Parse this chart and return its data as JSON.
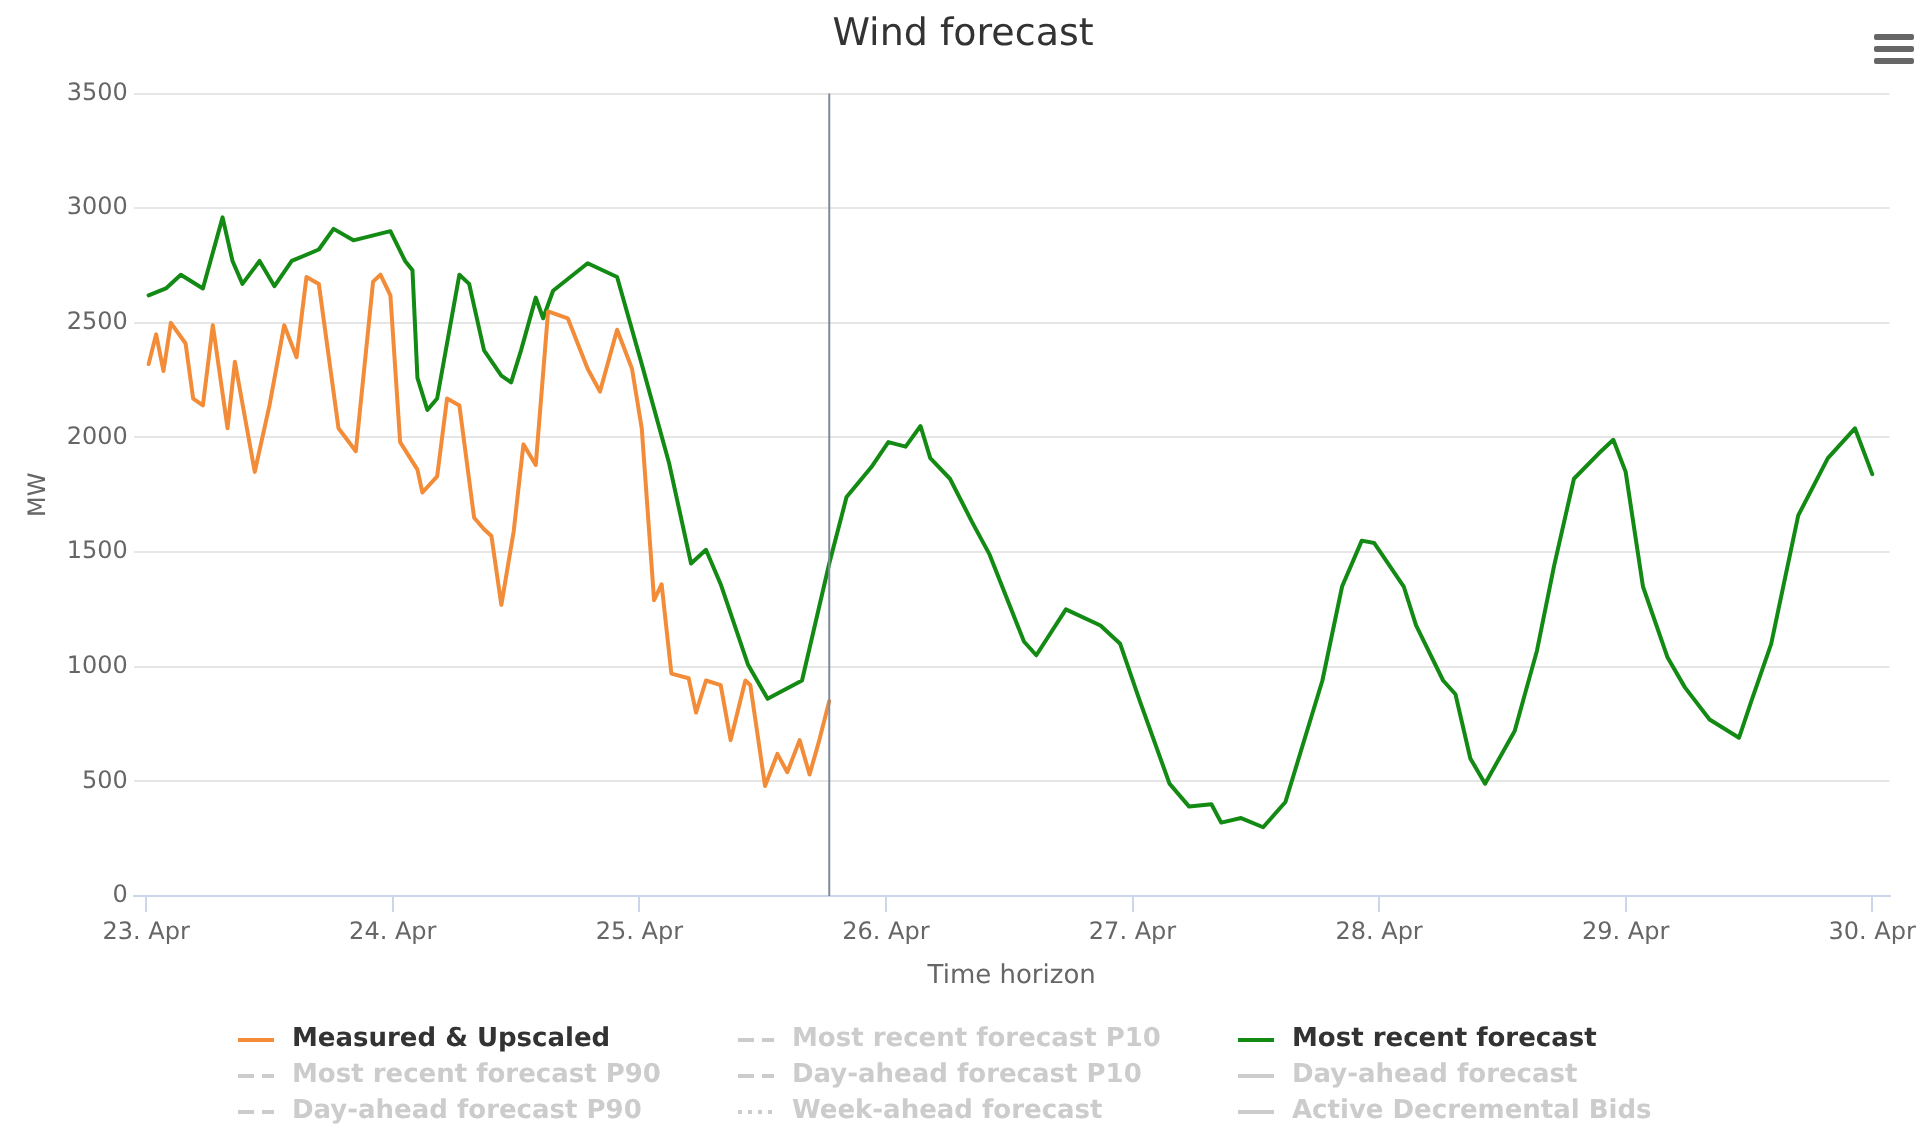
{
  "chart_data": {
    "type": "line",
    "title": "Wind forecast",
    "xlabel": "Time horizon",
    "ylabel": "MW",
    "xlim": [
      "--04-22T22:48",
      "--04-30T01:41"
    ],
    "xticks": [
      {
        "value": "--04-23",
        "label": "23. Apr"
      },
      {
        "value": "--04-24",
        "label": "24. Apr"
      },
      {
        "value": "--04-25",
        "label": "25. Apr"
      },
      {
        "value": "--04-26",
        "label": "26. Apr"
      },
      {
        "value": "--04-27",
        "label": "27. Apr"
      },
      {
        "value": "--04-28",
        "label": "28. Apr"
      },
      {
        "value": "--04-29",
        "label": "29. Apr"
      },
      {
        "value": "--04-30",
        "label": "30. Apr"
      }
    ],
    "ylim": [
      0,
      3500
    ],
    "yticks": [
      0,
      500,
      1000,
      1500,
      2000,
      2500,
      3000,
      3500
    ],
    "grid": "y",
    "legend": "bottom",
    "marker": "none",
    "ref_lines": [
      {
        "axis": "x",
        "value": "--04-25T18:29",
        "color": "#7f8a9a"
      }
    ],
    "series": [
      {
        "name": "Measured & Upscaled",
        "color": "#f28c38",
        "line_style": "solid",
        "x": [
          "--04-23T00:14",
          "--04-23T00:58",
          "--04-23T01:41",
          "--04-23T02:24",
          "--04-23T03:50",
          "--04-23T04:34",
          "--04-23T05:31",
          "--04-23T06:29",
          "--04-23T07:55",
          "--04-23T08:38",
          "--04-23T10:34",
          "--04-23T12:00",
          "--04-23T13:26",
          "--04-23T14:38",
          "--04-23T15:36",
          "--04-23T16:48",
          "--04-23T18:43",
          "--04-23T20:24",
          "--04-23T22:05",
          "--04-23T22:48",
          "--04-23T23:46",
          "--04-24T00:43",
          "--04-24T02:24",
          "--04-24T02:53",
          "--04-24T04:19",
          "--04-24T05:17",
          "--04-24T06:29",
          "--04-24T07:55",
          "--04-24T08:53",
          "--04-24T09:36",
          "--04-24T10:34",
          "--04-24T11:46",
          "--04-24T12:43",
          "--04-24T13:55",
          "--04-24T15:07",
          "--04-24T17:02",
          "--04-24T18:58",
          "--04-24T20:10",
          "--04-24T21:50",
          "--04-24T23:17",
          "--04-25T00:14",
          "--04-25T01:26",
          "--04-25T02:10",
          "--04-25T03:07",
          "--04-25T04:48",
          "--04-25T05:31",
          "--04-25T06:29",
          "--04-25T07:55",
          "--04-25T08:53",
          "--04-25T10:19",
          "--04-25T10:48",
          "--04-25T12:14",
          "--04-25T13:26",
          "--04-25T14:24",
          "--04-25T15:36",
          "--04-25T16:34",
          "--04-25T17:31",
          "--04-25T18:29"
        ],
        "values": [
          2320,
          2450,
          2290,
          2500,
          2410,
          2170,
          2140,
          2490,
          2040,
          2330,
          1850,
          2140,
          2490,
          2350,
          2700,
          2670,
          2040,
          1940,
          2680,
          2710,
          2620,
          1980,
          1860,
          1760,
          1830,
          2170,
          2140,
          1650,
          1600,
          1570,
          1270,
          1590,
          1970,
          1880,
          2550,
          2520,
          2300,
          2200,
          2470,
          2300,
          2040,
          1290,
          1360,
          970,
          950,
          800,
          940,
          920,
          680,
          940,
          920,
          480,
          620,
          540,
          680,
          530,
          680,
          850
        ]
      },
      {
        "name": "Most recent forecast P10",
        "color": "#cccccc",
        "line_style": "dashed"
      },
      {
        "name": "Most recent forecast",
        "color": "#138a13",
        "line_style": "solid",
        "x": [
          "--04-23T00:14",
          "--04-23T01:55",
          "--04-23T03:22",
          "--04-23T05:31",
          "--04-23T07:26",
          "--04-23T08:24",
          "--04-23T09:22",
          "--04-23T11:02",
          "--04-23T12:29",
          "--04-23T14:10",
          "--04-23T16:48",
          "--04-23T18:14",
          "--04-23T20:10",
          "--04-23T23:46",
          "--04-24T01:12",
          "--04-24T01:55",
          "--04-24T02:24",
          "--04-24T03:22",
          "--04-24T04:19",
          "--04-24T06:29",
          "--04-24T07:26",
          "--04-24T08:53",
          "--04-24T10:34",
          "--04-24T11:31",
          "--04-24T12:29",
          "--04-24T13:55",
          "--04-24T14:38",
          "--04-24T15:36",
          "--04-24T18:58",
          "--04-24T21:50",
          "--04-25T00:14",
          "--04-25T02:53",
          "--04-25T05:02",
          "--04-25T06:29",
          "--04-25T07:55",
          "--04-25T10:34",
          "--04-25T12:29",
          "--04-25T15:50",
          "--04-25T18:29",
          "--04-25T20:10",
          "--04-25T22:34",
          "--04-26T00:14",
          "--04-26T01:55",
          "--04-26T03:22",
          "--04-26T04:19",
          "--04-26T06:14",
          "--04-26T08:24",
          "--04-26T10:05",
          "--04-26T13:26",
          "--04-26T14:38",
          "--04-26T17:31",
          "--04-26T20:53",
          "--04-26T22:48",
          "--04-27T00:43",
          "--04-27T03:36",
          "--04-27T05:31",
          "--04-27T07:41",
          "--04-27T08:38",
          "--04-27T10:34",
          "--04-27T12:43",
          "--04-27T14:53",
          "--04-27T18:29",
          "--04-27T20:24",
          "--04-27T22:19",
          "--04-27T23:31",
          "--04-28T02:24",
          "--04-28T03:36",
          "--04-28T06:14",
          "--04-28T07:26",
          "--04-28T08:53",
          "--04-28T10:19",
          "--04-28T13:12",
          "--04-28T15:22",
          "--04-28T17:02",
          "--04-28T18:58",
          "--04-28T21:22",
          "--04-28T22:48",
          "--04-29T00:00",
          "--04-29T01:41",
          "--04-29T04:05",
          "--04-29T05:46",
          "--04-29T08:10",
          "--04-29T11:02",
          "--04-29T12:14",
          "--04-29T14:10",
          "--04-29T16:48",
          "--04-29T19:41",
          "--04-29T22:19",
          "--04-30T00:00"
        ],
        "values": [
          2620,
          2650,
          2710,
          2650,
          2960,
          2770,
          2670,
          2770,
          2660,
          2770,
          2820,
          2910,
          2860,
          2900,
          2770,
          2730,
          2260,
          2120,
          2170,
          2710,
          2670,
          2380,
          2270,
          2240,
          2380,
          2610,
          2520,
          2640,
          2760,
          2700,
          2320,
          1890,
          1450,
          1510,
          1360,
          1010,
          860,
          940,
          1450,
          1740,
          1870,
          1980,
          1960,
          2050,
          1910,
          1820,
          1630,
          1490,
          1110,
          1050,
          1250,
          1180,
          1100,
          850,
          490,
          390,
          400,
          320,
          340,
          300,
          410,
          940,
          1350,
          1550,
          1540,
          1350,
          1180,
          940,
          880,
          600,
          490,
          720,
          1070,
          1440,
          1820,
          1930,
          1990,
          1850,
          1350,
          1040,
          910,
          770,
          690,
          850,
          1100,
          1660,
          1910,
          2040,
          1840
        ]
      },
      {
        "name": "Most recent forecast P90",
        "color": "#cccccc",
        "line_style": "dashed"
      },
      {
        "name": "Day-ahead forecast P10",
        "color": "#cccccc",
        "line_style": "dashed"
      },
      {
        "name": "Day-ahead forecast",
        "color": "#cccccc",
        "line_style": "solid"
      },
      {
        "name": "Day-ahead forecast P90",
        "color": "#cccccc",
        "line_style": "dashed"
      },
      {
        "name": "Week-ahead forecast",
        "color": "#cccccc",
        "line_style": "dotted"
      },
      {
        "name": "Active Decremental Bids",
        "color": "#cccccc",
        "line_style": "solid"
      }
    ]
  }
}
